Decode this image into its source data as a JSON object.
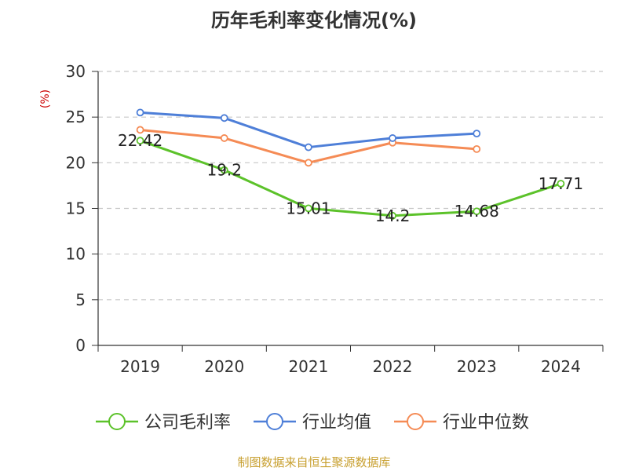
{
  "chart_data": {
    "type": "line",
    "title": "历年毛利率变化情况(%)",
    "ylabel": "(%)",
    "xlabel": "",
    "categories": [
      "2019",
      "2020",
      "2021",
      "2022",
      "2023",
      "2024"
    ],
    "ylim": [
      0,
      30
    ],
    "yticks": [
      0,
      5,
      10,
      15,
      20,
      25,
      30
    ],
    "grid": true,
    "legend_position": "bottom",
    "series": [
      {
        "name": "公司毛利率",
        "color": "#5cc22a",
        "values": [
          22.42,
          19.2,
          15.01,
          14.2,
          14.68,
          17.71
        ],
        "show_labels": true
      },
      {
        "name": "行业均值",
        "color": "#4e7fd8",
        "values": [
          25.5,
          24.9,
          21.7,
          22.7,
          23.2,
          null
        ],
        "show_labels": false
      },
      {
        "name": "行业中位数",
        "color": "#f58b55",
        "values": [
          23.6,
          22.7,
          20.0,
          22.2,
          21.5,
          null
        ],
        "show_labels": false
      }
    ]
  },
  "source": "制图数据来自恒生聚源数据库",
  "colors": {
    "axis": "#333333",
    "grid": "#c8c8c8",
    "unit": "#cc0000",
    "source": "#c8a030"
  }
}
